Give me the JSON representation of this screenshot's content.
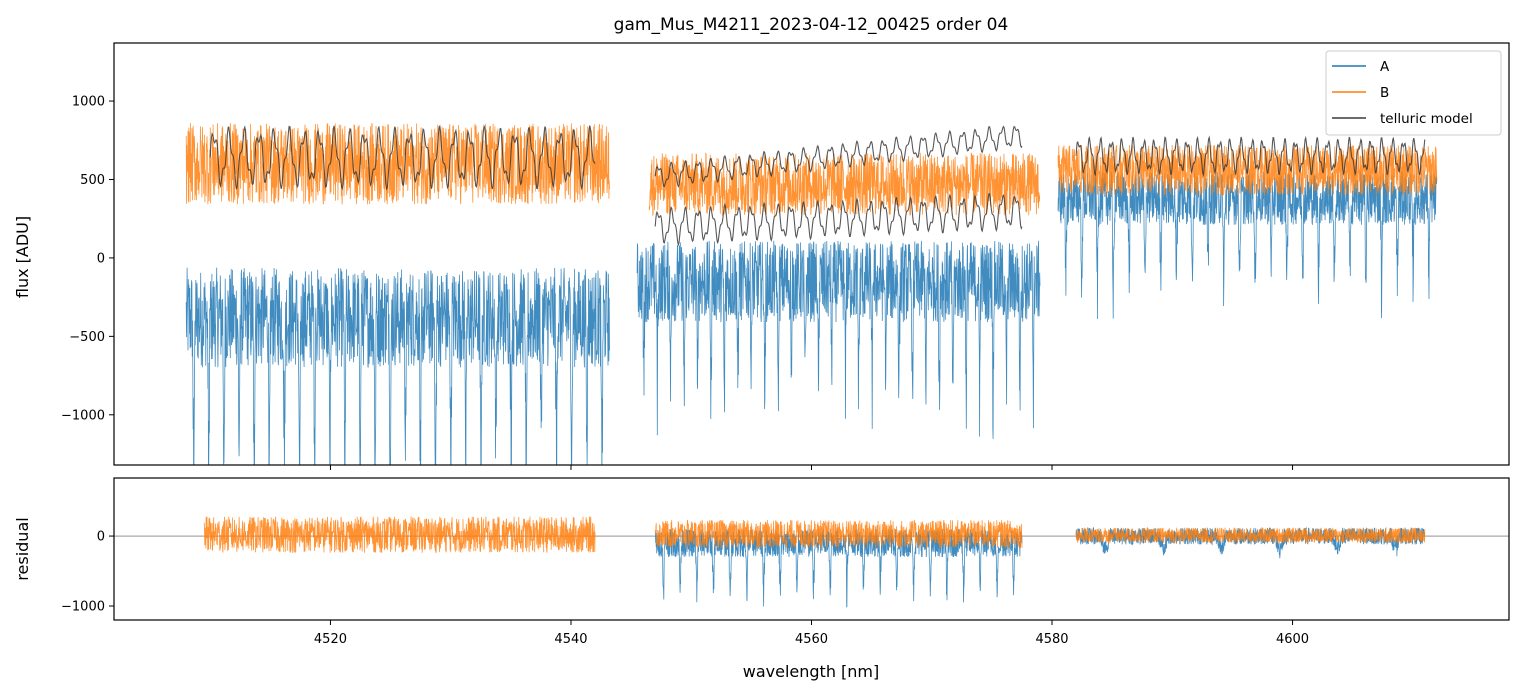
{
  "chart_data": [
    {
      "panel": "top",
      "type": "line",
      "title": "gam_Mus_M4211_2023-04-12_00425  order 04",
      "xlabel": "",
      "ylabel": "flux [ADU]",
      "xlim": [
        4502,
        4618
      ],
      "ylim": [
        -1320,
        1370
      ],
      "yticks": [
        -1000,
        -500,
        0,
        500,
        1000
      ],
      "ytick_labels": [
        "−1000",
        "−500",
        "0",
        "500",
        "1000"
      ],
      "xticks": [
        4520,
        4540,
        4560,
        4580,
        4600
      ],
      "legend": {
        "placement": "top-right",
        "entries": [
          "A",
          "B",
          "telluric model"
        ]
      },
      "series": [
        {
          "name": "A",
          "color": "#1f77b4",
          "segments": [
            {
              "x_range": [
                4508.0,
                4543.2
              ],
              "baseline": -380,
              "spread": 320,
              "dips": 28,
              "dip_depth": 1300
            },
            {
              "x_range": [
                4545.5,
                4579.0
              ],
              "baseline": -150,
              "spread": 260,
              "dips": 30,
              "dip_depth": 900
            },
            {
              "x_range": [
                4580.5,
                4612.0
              ],
              "baseline": 380,
              "spread": 170,
              "dips": 24,
              "dip_depth": 700
            }
          ]
        },
        {
          "name": "B",
          "color": "#ff7f0e",
          "segments": [
            {
              "x_range": [
                4508.0,
                4543.2
              ],
              "baseline": 600,
              "spread": 260
            },
            {
              "x_range": [
                4546.5,
                4579.0
              ],
              "baseline": 470,
              "spread": 200
            },
            {
              "x_range": [
                4580.5,
                4612.0
              ],
              "baseline": 560,
              "spread": 160
            }
          ]
        },
        {
          "name": "telluric model",
          "color": "#3a3a3a",
          "segments": [
            {
              "x_range": [
                4510.0,
                4542.0
              ],
              "level": 640,
              "amplitude": 150,
              "period_nm": 1.25
            },
            {
              "x_range": [
                4547.0,
                4577.5
              ],
              "level": 520,
              "amplitude": 60,
              "period_nm": 1.1,
              "end_level": 780
            },
            {
              "x_range": [
                4547.0,
                4577.5
              ],
              "level": 200,
              "amplitude": 90,
              "period_nm": 1.1,
              "end_level": 300
            },
            {
              "x_range": [
                4582.0,
                4611.0
              ],
              "level": 650,
              "amplitude": 90,
              "period_nm": 0.9
            }
          ]
        }
      ]
    },
    {
      "panel": "bottom",
      "type": "line",
      "title": "",
      "xlabel": "wavelength [nm]",
      "ylabel": "residual",
      "xlim": [
        4502,
        4618
      ],
      "ylim": [
        -1200,
        830
      ],
      "yticks": [
        -1000,
        0
      ],
      "ytick_labels": [
        "−1000",
        "0"
      ],
      "xticks": [
        4520,
        4540,
        4560,
        4580,
        4600
      ],
      "xtick_labels": [
        "4520",
        "4540",
        "4560",
        "4580",
        "4600"
      ],
      "zero_line": 0,
      "series": [
        {
          "name": "A",
          "color": "#1f77b4",
          "segments": [
            {
              "x_range": [
                4547.0,
                4577.5
              ],
              "baseline": -100,
              "spread": 200,
              "dips": 22,
              "dip_depth": 900
            },
            {
              "x_range": [
                4582.0,
                4611.0
              ],
              "baseline": 0,
              "spread": 120,
              "dips": 6,
              "dip_depth": 250
            }
          ]
        },
        {
          "name": "B",
          "color": "#ff7f0e",
          "segments": [
            {
              "x_range": [
                4509.5,
                4542.0
              ],
              "baseline": 20,
              "spread": 260
            },
            {
              "x_range": [
                4547.0,
                4577.5
              ],
              "baseline": 30,
              "spread": 200
            },
            {
              "x_range": [
                4582.0,
                4611.0
              ],
              "baseline": 10,
              "spread": 110
            }
          ]
        }
      ]
    }
  ]
}
